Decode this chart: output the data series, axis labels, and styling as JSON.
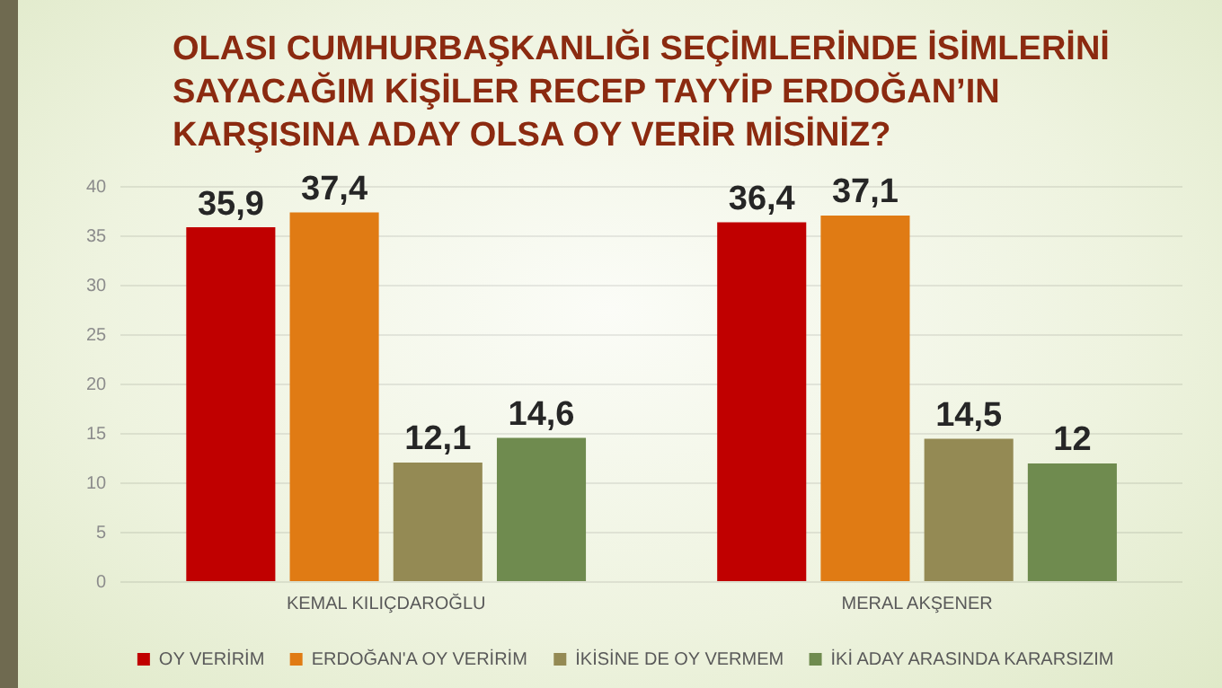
{
  "chart_data": {
    "type": "bar",
    "title": "OLASI CUMHURBAŞKANLIĞI SEÇİMLERİNDE İSİMLERİNİ SAYACAĞIM KİŞİLER RECEP TAYYİP ERDOĞAN’IN KARŞISINA ADAY OLSA OY VERİR MİSİNİZ?",
    "categories": [
      "KEMAL KILIÇDAROĞLU",
      "MERAL AKŞENER"
    ],
    "series": [
      {
        "name": "OY VERİRİM",
        "color": "#c00000",
        "values": [
          35.9,
          36.4
        ],
        "value_labels": [
          "35,9",
          "36,4"
        ]
      },
      {
        "name": "ERDOĞAN'A OY VERİRİM",
        "color": "#e07b14",
        "values": [
          37.4,
          37.1
        ],
        "value_labels": [
          "37,4",
          "37,1"
        ]
      },
      {
        "name": "İKİSİNE DE OY VERMEM",
        "color": "#948a54",
        "values": [
          12.1,
          14.5
        ],
        "value_labels": [
          "12,1",
          "14,5"
        ]
      },
      {
        "name": "İKİ ADAY ARASINDA KARARSIZIM",
        "color": "#6f8b4f",
        "values": [
          14.6,
          12
        ],
        "value_labels": [
          "14,6",
          "12"
        ]
      }
    ],
    "ylim": [
      0,
      40
    ],
    "yticks": [
      0,
      5,
      10,
      15,
      20,
      25,
      30,
      35,
      40
    ],
    "grid": "y",
    "legend": "bottom"
  }
}
